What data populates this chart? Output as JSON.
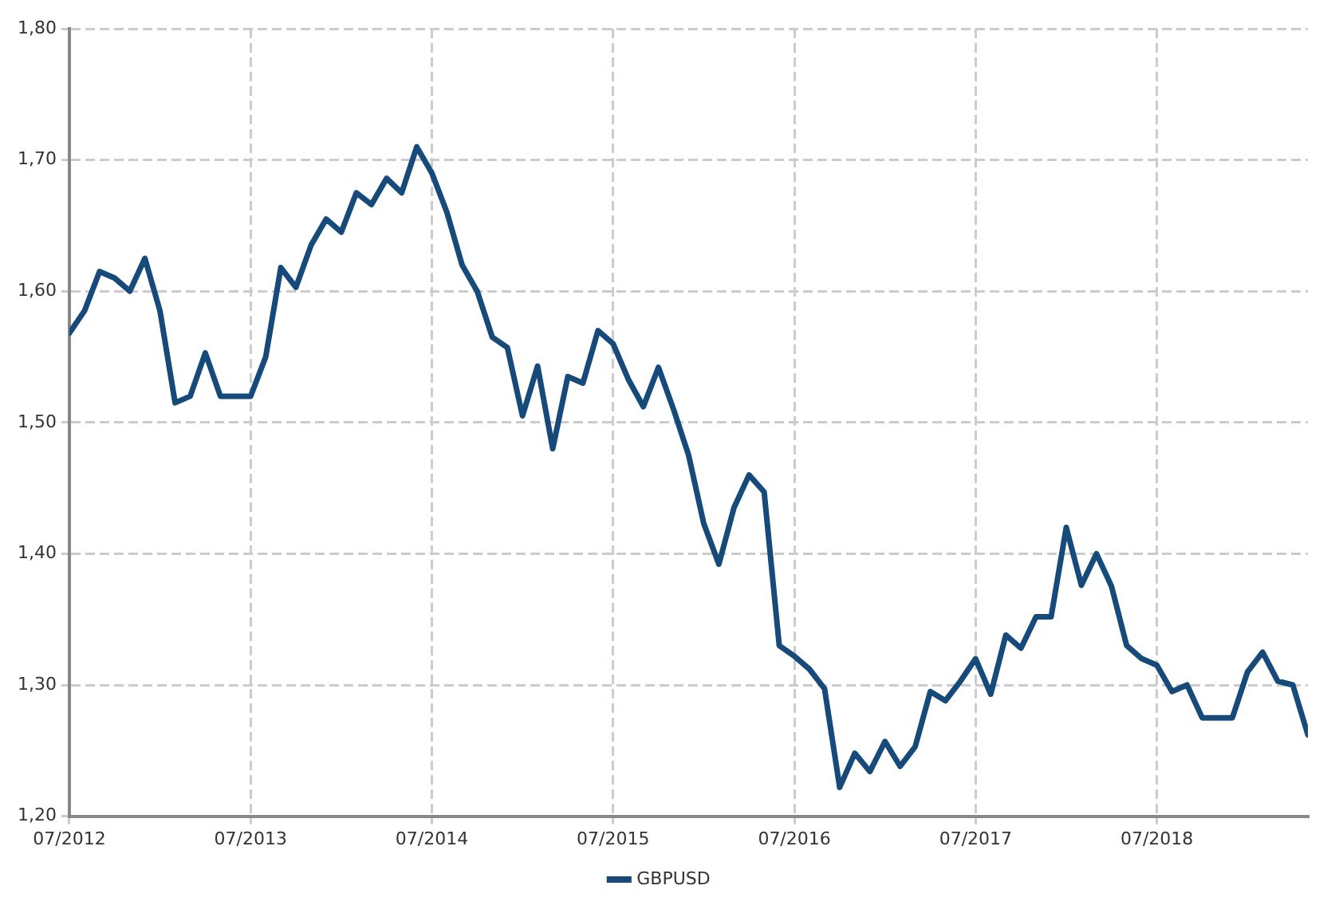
{
  "chart_data": {
    "type": "line",
    "legend": "bottom",
    "grid": true,
    "marker": "none",
    "line_style": "solid",
    "x": [
      "2012-07",
      "2012-08",
      "2012-09",
      "2012-10",
      "2012-11",
      "2012-12",
      "2013-01",
      "2013-02",
      "2013-03",
      "2013-04",
      "2013-05",
      "2013-06",
      "2013-07",
      "2013-08",
      "2013-09",
      "2013-10",
      "2013-11",
      "2013-12",
      "2014-01",
      "2014-02",
      "2014-03",
      "2014-04",
      "2014-05",
      "2014-06",
      "2014-07",
      "2014-08",
      "2014-09",
      "2014-10",
      "2014-11",
      "2014-12",
      "2015-01",
      "2015-02",
      "2015-03",
      "2015-04",
      "2015-05",
      "2015-06",
      "2015-07",
      "2015-08",
      "2015-09",
      "2015-10",
      "2015-11",
      "2015-12",
      "2016-01",
      "2016-02",
      "2016-03",
      "2016-04",
      "2016-05",
      "2016-06",
      "2016-07",
      "2016-08",
      "2016-09",
      "2016-10",
      "2016-11",
      "2016-12",
      "2017-01",
      "2017-02",
      "2017-03",
      "2017-04",
      "2017-05",
      "2017-06",
      "2017-07",
      "2017-08",
      "2017-09",
      "2017-10",
      "2017-11",
      "2017-12",
      "2018-01",
      "2018-02",
      "2018-03",
      "2018-04",
      "2018-05",
      "2018-06",
      "2018-07",
      "2018-08",
      "2018-09",
      "2018-10",
      "2018-11",
      "2018-12",
      "2019-01",
      "2019-02",
      "2019-03",
      "2019-04",
      "2019-05"
    ],
    "series": [
      {
        "name": "GBPUSD",
        "color": "#154a7a",
        "values": [
          1.568,
          1.585,
          1.615,
          1.61,
          1.6,
          1.625,
          1.585,
          1.515,
          1.52,
          1.553,
          1.52,
          1.52,
          1.52,
          1.55,
          1.618,
          1.603,
          1.635,
          1.655,
          1.645,
          1.675,
          1.666,
          1.686,
          1.675,
          1.71,
          1.69,
          1.66,
          1.62,
          1.6,
          1.565,
          1.557,
          1.505,
          1.543,
          1.48,
          1.535,
          1.53,
          1.57,
          1.56,
          1.533,
          1.512,
          1.542,
          1.51,
          1.475,
          1.423,
          1.392,
          1.435,
          1.46,
          1.447,
          1.33,
          1.322,
          1.312,
          1.297,
          1.222,
          1.248,
          1.234,
          1.257,
          1.238,
          1.253,
          1.295,
          1.288,
          1.303,
          1.32,
          1.293,
          1.338,
          1.328,
          1.352,
          1.352,
          1.42,
          1.376,
          1.4,
          1.375,
          1.33,
          1.32,
          1.315,
          1.295,
          1.3,
          1.275,
          1.275,
          1.275,
          1.31,
          1.325,
          1.303,
          1.3,
          1.262
        ]
      }
    ],
    "xlim": [
      "2012-07",
      "2019-05"
    ],
    "xticks": [
      {
        "value": "2012-07",
        "label": "07/2012"
      },
      {
        "value": "2013-07",
        "label": "07/2013"
      },
      {
        "value": "2014-07",
        "label": "07/2014"
      },
      {
        "value": "2015-07",
        "label": "07/2015"
      },
      {
        "value": "2016-07",
        "label": "07/2016"
      },
      {
        "value": "2017-07",
        "label": "07/2017"
      },
      {
        "value": "2018-07",
        "label": "07/2018"
      }
    ],
    "ylim": [
      1.2,
      1.8
    ],
    "yticks": [
      {
        "value": 1.2,
        "label": "1,20"
      },
      {
        "value": 1.3,
        "label": "1,30"
      },
      {
        "value": 1.4,
        "label": "1,40"
      },
      {
        "value": 1.5,
        "label": "1,50"
      },
      {
        "value": 1.6,
        "label": "1,60"
      },
      {
        "value": 1.7,
        "label": "1,70"
      },
      {
        "value": 1.8,
        "label": "1,80"
      }
    ]
  }
}
